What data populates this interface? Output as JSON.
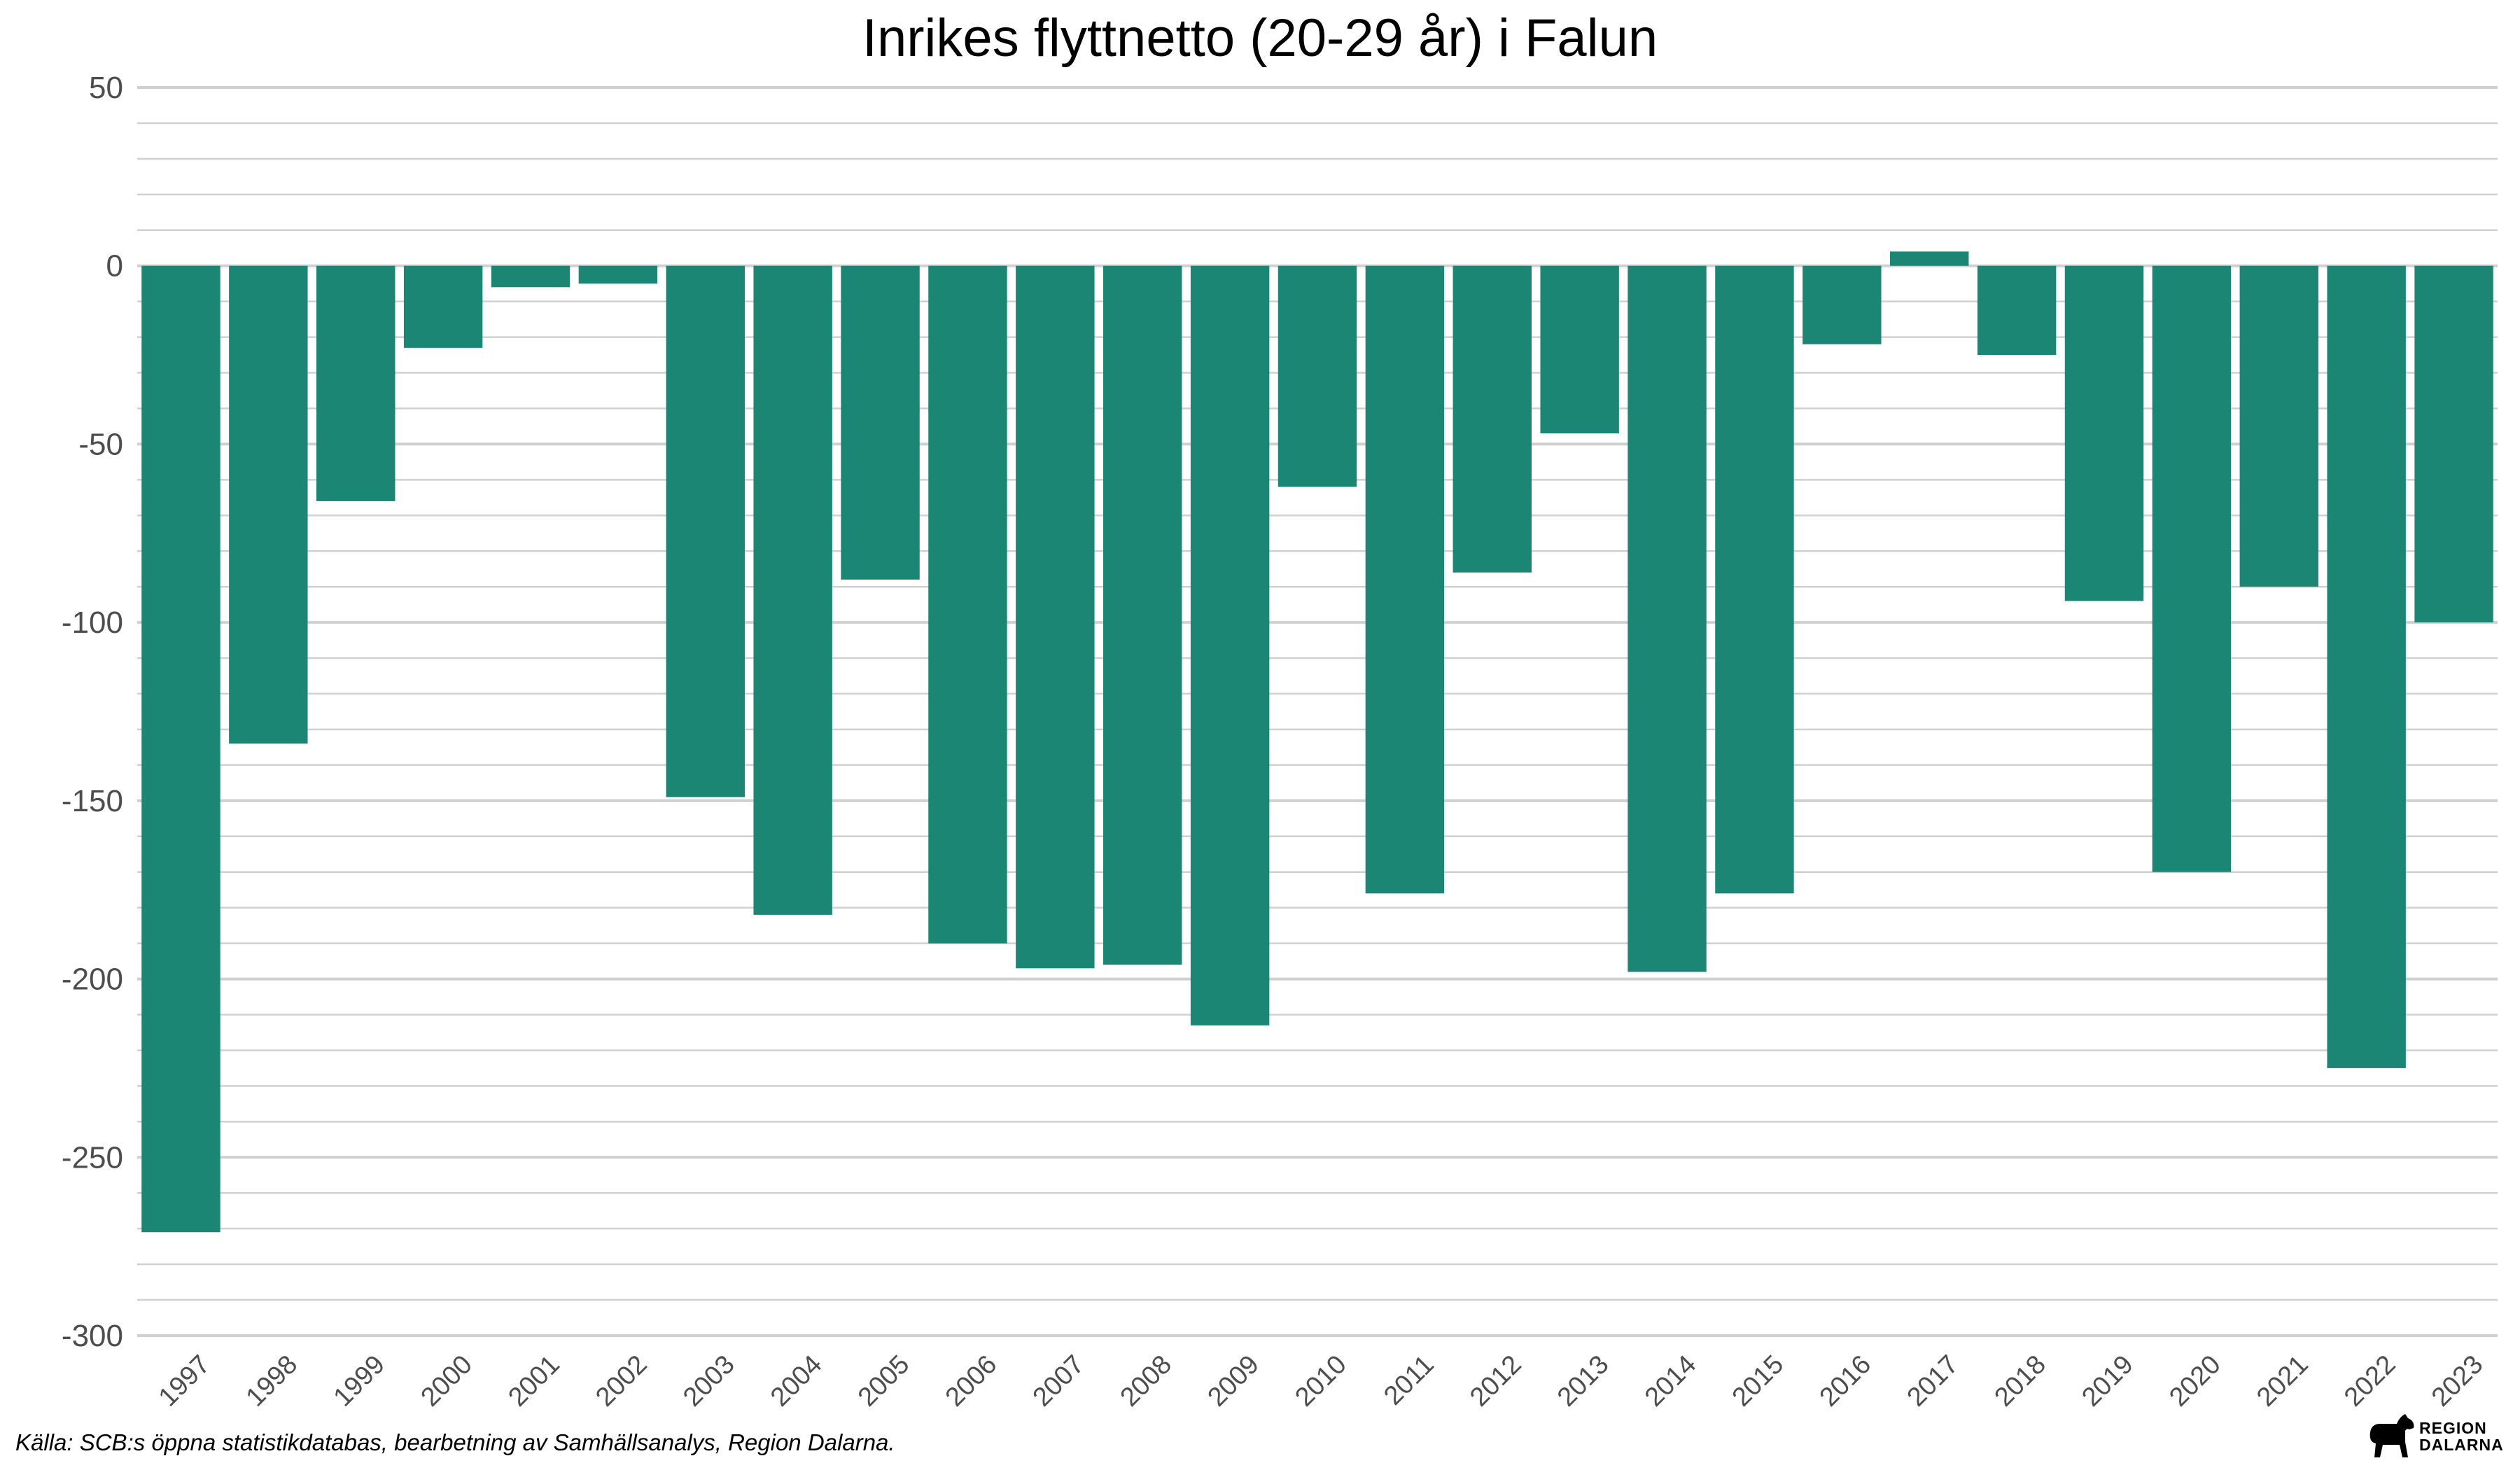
{
  "chart_data": {
    "type": "bar",
    "title": "Inrikes flyttnetto (20-29 år) i Falun",
    "xlabel": "",
    "ylabel": "",
    "ylim": [
      -300,
      50
    ],
    "y_ticks": [
      50,
      0,
      -50,
      -100,
      -150,
      -200,
      -250,
      -300
    ],
    "y_tick_labels": [
      "50",
      "0",
      "-50",
      "-100",
      "-150",
      "-200",
      "-250",
      "-300"
    ],
    "y_minor_step": 10,
    "grid": true,
    "legend": "none",
    "bar_color": "#1a8673",
    "categories": [
      "1997",
      "1998",
      "1999",
      "2000",
      "2001",
      "2002",
      "2003",
      "2004",
      "2005",
      "2006",
      "2007",
      "2008",
      "2009",
      "2010",
      "2011",
      "2012",
      "2013",
      "2014",
      "2015",
      "2016",
      "2017",
      "2018",
      "2019",
      "2020",
      "2021",
      "2022",
      "2023"
    ],
    "values": [
      -271,
      -134,
      -66,
      -23,
      -6,
      -5,
      -149,
      -182,
      -88,
      -190,
      -197,
      -196,
      -213,
      -62,
      -176,
      -86,
      -47,
      -198,
      -176,
      -22,
      4,
      -25,
      -94,
      -170,
      -90,
      -225,
      -100
    ]
  },
  "caption": "Källa: SCB:s öppna statistikdatabas, bearbetning av Samhällsanalys, Region Dalarna.",
  "logo": {
    "line1": "REGION",
    "line2": "DALARNA"
  }
}
